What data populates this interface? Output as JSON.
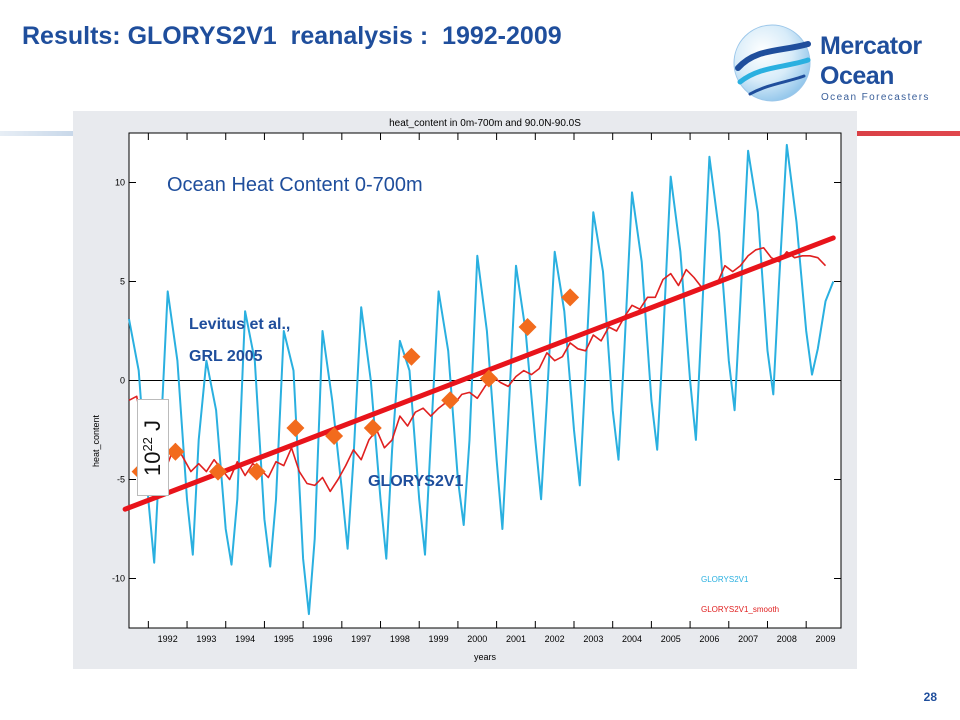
{
  "slide": {
    "title": "Results: GLORYS2V1  reanalysis :  1992-2009",
    "page_number": "28"
  },
  "logo": {
    "name_line1": "Mercator",
    "name_line2": "Ocean",
    "tagline": "Ocean Forecasters",
    "icon": "globe-wave-icon"
  },
  "colors": {
    "title": "#1f4e9c",
    "series_glorys": "#2ab0e0",
    "series_smooth": "#e02020",
    "trend_line": "#e8141b",
    "levitus_markers": "#f26b1d",
    "band_blue": "#1c5ea8",
    "band_red": "#d43a3f"
  },
  "unit_label": {
    "base": "10",
    "exponent": "22",
    "suffix": " J"
  },
  "chart_data": {
    "type": "line",
    "title": "heat_content in 0m-700m and 90.0N-90.0S",
    "xlabel": "years",
    "ylabel": "heat_content",
    "xlim": [
      1991.5,
      2009.9
    ],
    "ylim": [
      -12.5,
      12.5
    ],
    "x_ticks": [
      1992,
      1993,
      1994,
      1995,
      1996,
      1997,
      1998,
      1999,
      2000,
      2001,
      2002,
      2003,
      2004,
      2005,
      2006,
      2007,
      2008,
      2009
    ],
    "y_ticks": [
      -10,
      -5,
      0,
      5,
      10
    ],
    "grid": false,
    "zero_line": true,
    "legend_position": "bottom-right",
    "legend": [
      "GLORYS2V1",
      "GLORYS2V1_smooth"
    ],
    "annotations": {
      "panel_heading": "Ocean Heat Content 0-700m",
      "levitus_line1": "Levitus et al.,",
      "levitus_line2": "GRL 2005",
      "glorys_label": "GLORYS2V1"
    },
    "series": [
      {
        "name": "GLORYS2V1",
        "points": [
          [
            1991.5,
            3.1
          ],
          [
            1991.75,
            0.5
          ],
          [
            1992.0,
            -6.0
          ],
          [
            1992.15,
            -9.2
          ],
          [
            1992.3,
            -3.5
          ],
          [
            1992.5,
            4.5
          ],
          [
            1992.75,
            1.0
          ],
          [
            1993.0,
            -6.0
          ],
          [
            1993.15,
            -8.8
          ],
          [
            1993.3,
            -3.0
          ],
          [
            1993.5,
            1.0
          ],
          [
            1993.75,
            -1.5
          ],
          [
            1994.0,
            -7.5
          ],
          [
            1994.15,
            -9.3
          ],
          [
            1994.3,
            -6.0
          ],
          [
            1994.5,
            3.5
          ],
          [
            1994.75,
            1.0
          ],
          [
            1995.0,
            -7.0
          ],
          [
            1995.15,
            -9.4
          ],
          [
            1995.3,
            -6.0
          ],
          [
            1995.5,
            2.5
          ],
          [
            1995.75,
            0.5
          ],
          [
            1996.0,
            -9.0
          ],
          [
            1996.15,
            -11.8
          ],
          [
            1996.3,
            -8.0
          ],
          [
            1996.5,
            2.5
          ],
          [
            1996.75,
            -1.0
          ],
          [
            1997.0,
            -5.5
          ],
          [
            1997.15,
            -8.5
          ],
          [
            1997.3,
            -4.0
          ],
          [
            1997.5,
            3.7
          ],
          [
            1997.75,
            0.0
          ],
          [
            1998.0,
            -6.0
          ],
          [
            1998.15,
            -9.0
          ],
          [
            1998.3,
            -3.5
          ],
          [
            1998.5,
            2.0
          ],
          [
            1998.75,
            0.5
          ],
          [
            1999.0,
            -6.0
          ],
          [
            1999.15,
            -8.8
          ],
          [
            1999.3,
            -3.0
          ],
          [
            1999.5,
            4.5
          ],
          [
            1999.75,
            1.5
          ],
          [
            2000.0,
            -5.0
          ],
          [
            2000.15,
            -7.3
          ],
          [
            2000.3,
            -3.0
          ],
          [
            2000.5,
            6.3
          ],
          [
            2000.75,
            2.5
          ],
          [
            2001.0,
            -4.0
          ],
          [
            2001.15,
            -7.5
          ],
          [
            2001.3,
            -2.0
          ],
          [
            2001.5,
            5.8
          ],
          [
            2001.75,
            2.5
          ],
          [
            2002.0,
            -3.0
          ],
          [
            2002.15,
            -6.0
          ],
          [
            2002.3,
            -1.0
          ],
          [
            2002.5,
            6.5
          ],
          [
            2002.75,
            3.5
          ],
          [
            2003.0,
            -2.5
          ],
          [
            2003.15,
            -5.3
          ],
          [
            2003.3,
            0.5
          ],
          [
            2003.5,
            8.5
          ],
          [
            2003.75,
            5.5
          ],
          [
            2004.0,
            -1.5
          ],
          [
            2004.15,
            -4.0
          ],
          [
            2004.3,
            1.5
          ],
          [
            2004.5,
            9.5
          ],
          [
            2004.75,
            6.0
          ],
          [
            2005.0,
            -1.0
          ],
          [
            2005.15,
            -3.5
          ],
          [
            2005.3,
            2.0
          ],
          [
            2005.5,
            10.3
          ],
          [
            2005.75,
            6.5
          ],
          [
            2006.0,
            0.0
          ],
          [
            2006.15,
            -3.0
          ],
          [
            2006.3,
            3.0
          ],
          [
            2006.5,
            11.3
          ],
          [
            2006.75,
            7.5
          ],
          [
            2007.0,
            1.0
          ],
          [
            2007.15,
            -1.5
          ],
          [
            2007.3,
            4.0
          ],
          [
            2007.5,
            11.6
          ],
          [
            2007.75,
            8.5
          ],
          [
            2008.0,
            1.5
          ],
          [
            2008.15,
            -0.7
          ],
          [
            2008.3,
            5.0
          ],
          [
            2008.5,
            11.9
          ],
          [
            2008.75,
            8.0
          ],
          [
            2009.0,
            2.5
          ],
          [
            2009.15,
            0.3
          ],
          [
            2009.3,
            1.6
          ],
          [
            2009.5,
            4.0
          ],
          [
            2009.7,
            5.0
          ]
        ]
      },
      {
        "name": "GLORYS2V1_smooth",
        "points": [
          [
            1991.5,
            -1.0
          ],
          [
            1991.7,
            -0.8
          ],
          [
            1991.9,
            -2.8
          ],
          [
            1992.1,
            -4.3
          ],
          [
            1992.3,
            -3.6
          ],
          [
            1992.5,
            -4.2
          ],
          [
            1992.7,
            -3.2
          ],
          [
            1992.9,
            -3.9
          ],
          [
            1993.1,
            -4.6
          ],
          [
            1993.3,
            -4.2
          ],
          [
            1993.5,
            -4.6
          ],
          [
            1993.7,
            -4.0
          ],
          [
            1993.9,
            -4.5
          ],
          [
            1994.1,
            -5.0
          ],
          [
            1994.3,
            -4.1
          ],
          [
            1994.5,
            -4.8
          ],
          [
            1994.7,
            -4.2
          ],
          [
            1994.9,
            -4.5
          ],
          [
            1995.1,
            -4.9
          ],
          [
            1995.3,
            -4.1
          ],
          [
            1995.5,
            -4.3
          ],
          [
            1995.7,
            -3.4
          ],
          [
            1995.9,
            -4.6
          ],
          [
            1996.1,
            -5.2
          ],
          [
            1996.3,
            -5.3
          ],
          [
            1996.5,
            -4.9
          ],
          [
            1996.7,
            -5.6
          ],
          [
            1996.9,
            -5.0
          ],
          [
            1997.1,
            -4.3
          ],
          [
            1997.3,
            -3.5
          ],
          [
            1997.5,
            -4.0
          ],
          [
            1997.7,
            -3.0
          ],
          [
            1997.9,
            -2.5
          ],
          [
            1998.1,
            -3.4
          ],
          [
            1998.3,
            -3.0
          ],
          [
            1998.5,
            -1.8
          ],
          [
            1998.7,
            -2.3
          ],
          [
            1998.9,
            -1.6
          ],
          [
            1999.1,
            -1.4
          ],
          [
            1999.3,
            -1.8
          ],
          [
            1999.5,
            -1.4
          ],
          [
            1999.7,
            -1.1
          ],
          [
            1999.9,
            -1.2
          ],
          [
            2000.1,
            -0.7
          ],
          [
            2000.3,
            -0.6
          ],
          [
            2000.5,
            -0.9
          ],
          [
            2000.7,
            -0.3
          ],
          [
            2000.9,
            0.2
          ],
          [
            2001.1,
            -0.1
          ],
          [
            2001.3,
            -0.3
          ],
          [
            2001.5,
            0.2
          ],
          [
            2001.7,
            0.5
          ],
          [
            2001.9,
            0.3
          ],
          [
            2002.1,
            0.6
          ],
          [
            2002.3,
            1.4
          ],
          [
            2002.5,
            1.0
          ],
          [
            2002.7,
            1.2
          ],
          [
            2002.9,
            1.9
          ],
          [
            2003.1,
            1.6
          ],
          [
            2003.3,
            1.5
          ],
          [
            2003.5,
            2.3
          ],
          [
            2003.7,
            2.0
          ],
          [
            2003.9,
            2.7
          ],
          [
            2004.1,
            2.5
          ],
          [
            2004.3,
            3.2
          ],
          [
            2004.5,
            3.8
          ],
          [
            2004.7,
            3.6
          ],
          [
            2004.9,
            4.2
          ],
          [
            2005.1,
            4.2
          ],
          [
            2005.3,
            5.1
          ],
          [
            2005.5,
            5.4
          ],
          [
            2005.7,
            4.8
          ],
          [
            2005.9,
            5.6
          ],
          [
            2006.1,
            5.2
          ],
          [
            2006.3,
            4.7
          ],
          [
            2006.5,
            4.8
          ],
          [
            2006.7,
            4.9
          ],
          [
            2006.9,
            5.8
          ],
          [
            2007.1,
            5.5
          ],
          [
            2007.3,
            5.8
          ],
          [
            2007.5,
            6.3
          ],
          [
            2007.7,
            6.6
          ],
          [
            2007.9,
            6.7
          ],
          [
            2008.1,
            6.2
          ],
          [
            2008.3,
            6.0
          ],
          [
            2008.5,
            6.5
          ],
          [
            2008.7,
            6.2
          ],
          [
            2008.9,
            6.3
          ],
          [
            2009.1,
            6.3
          ],
          [
            2009.3,
            6.2
          ],
          [
            2009.5,
            5.8
          ]
        ]
      }
    ],
    "trend": {
      "start": [
        1991.4,
        -6.5
      ],
      "end": [
        2009.7,
        7.2
      ]
    },
    "levitus_points": [
      [
        1991.8,
        -4.6
      ],
      [
        1992.7,
        -3.6
      ],
      [
        1993.8,
        -4.6
      ],
      [
        1994.8,
        -4.6
      ],
      [
        1995.8,
        -2.4
      ],
      [
        1996.8,
        -2.8
      ],
      [
        1997.8,
        -2.4
      ],
      [
        1998.8,
        1.2
      ],
      [
        1999.8,
        -1.0
      ],
      [
        2000.8,
        0.1
      ],
      [
        2001.8,
        2.7
      ],
      [
        2002.9,
        4.2
      ]
    ]
  }
}
